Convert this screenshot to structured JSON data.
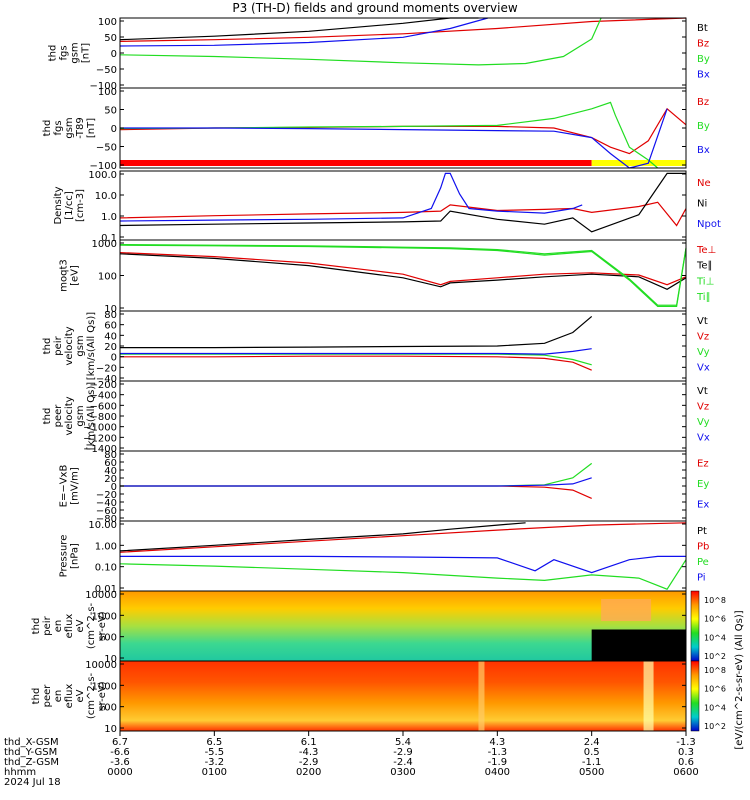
{
  "title": "P3 (TH-D) fields and ground moments overview",
  "colors": {
    "black": "#000000",
    "red": "#e00000",
    "green": "#22dd22",
    "blue": "#1010ee",
    "yellow": "#ffff00",
    "bar_red": "#ff0000"
  },
  "chart_data": [
    {
      "type": "line",
      "ylabel": [
        "thd",
        "fgs",
        "gsm",
        "[nT]"
      ],
      "yticks": [
        "100",
        "50",
        "0",
        "−50",
        "−100"
      ],
      "ylim": [
        -100,
        100
      ],
      "legend": [
        {
          "text": "Bt",
          "color": "#000000"
        },
        {
          "text": "Bz",
          "color": "#e00000"
        },
        {
          "text": "By",
          "color": "#22dd22"
        },
        {
          "text": "Bx",
          "color": "#1010ee"
        }
      ],
      "series": [
        {
          "name": "Bt",
          "x": [
            0,
            1,
            2,
            3,
            3.5,
            3.8
          ],
          "values": [
            38,
            48,
            62,
            85,
            100,
            100
          ]
        },
        {
          "name": "Bz",
          "x": [
            0,
            1,
            2,
            3,
            4,
            5,
            6
          ],
          "values": [
            33,
            38,
            45,
            55,
            70,
            90,
            100
          ]
        },
        {
          "name": "By",
          "x": [
            0,
            1,
            2,
            3,
            3.8,
            4.3,
            4.7,
            5.0,
            5.1
          ],
          "values": [
            -5,
            -10,
            -18,
            -28,
            -34,
            -30,
            -10,
            40,
            100
          ]
        },
        {
          "name": "Bx",
          "x": [
            0,
            1,
            2,
            3,
            3.5,
            3.9
          ],
          "values": [
            20,
            22,
            30,
            45,
            70,
            100
          ]
        }
      ]
    },
    {
      "type": "line",
      "ylabel": [
        "thd",
        "fgs",
        "gsm",
        "-T89",
        "[nT]"
      ],
      "yticks": [
        "100",
        "50",
        "0",
        "−50",
        "−100"
      ],
      "ylim": [
        -125,
        125
      ],
      "legend": [
        {
          "text": "Bz",
          "color": "#e00000"
        },
        {
          "text": "By",
          "color": "#22dd22"
        },
        {
          "text": "Bx",
          "color": "#1010ee"
        }
      ],
      "series": [
        {
          "name": "Bz",
          "x": [
            0,
            1,
            2,
            3,
            4,
            4.6,
            5.0,
            5.2,
            5.4,
            5.6,
            5.8,
            6.0
          ],
          "values": [
            -5,
            0,
            2,
            5,
            5,
            0,
            -30,
            -60,
            -80,
            -40,
            60,
            10
          ]
        },
        {
          "name": "By",
          "x": [
            0,
            1,
            2,
            3,
            4,
            4.6,
            5.0,
            5.2,
            5.25,
            5.4,
            5.6,
            5.7
          ],
          "values": [
            -2,
            0,
            3,
            5,
            8,
            30,
            60,
            80,
            40,
            -60,
            -100,
            -125
          ]
        },
        {
          "name": "Bx",
          "x": [
            0,
            1,
            2,
            3,
            4,
            4.6,
            5.0,
            5.2,
            5.4,
            5.6,
            5.8
          ],
          "values": [
            0,
            0,
            -2,
            -5,
            -8,
            -10,
            -30,
            -80,
            -125,
            -110,
            60
          ]
        }
      ]
    },
    {
      "type": "line",
      "ylabel": [
        "Density",
        "[1/cc]",
        "[cm-3]"
      ],
      "yticks": [
        "100.0",
        "10.0",
        "1.0",
        "0.1"
      ],
      "ylim": [
        0.06,
        130
      ],
      "yscale": "log",
      "legend": [
        {
          "text": "Ne",
          "color": "#e00000"
        },
        {
          "text": "Ni",
          "color": "#000000"
        },
        {
          "text": "Npot",
          "color": "#1010ee"
        }
      ],
      "series": [
        {
          "name": "Ne",
          "x": [
            0,
            1,
            2,
            3,
            3.4,
            3.5,
            4,
            4.5,
            4.8,
            5.0,
            5.5,
            5.7,
            5.9,
            6.0
          ],
          "values": [
            0.7,
            0.9,
            1.1,
            1.3,
            1.5,
            3.0,
            1.6,
            1.8,
            2.0,
            1.3,
            2.5,
            4,
            0.3,
            2
          ]
        },
        {
          "name": "Ni",
          "x": [
            0,
            1,
            2,
            3,
            3.4,
            3.5,
            4,
            4.5,
            4.8,
            5.0,
            5.5,
            5.8,
            6.0
          ],
          "values": [
            0.3,
            0.35,
            0.4,
            0.45,
            0.5,
            1.5,
            0.6,
            0.35,
            0.7,
            0.15,
            1.0,
            100,
            100
          ]
        },
        {
          "name": "Npot",
          "x": [
            0,
            1,
            2,
            3,
            3.3,
            3.4,
            3.45,
            3.5,
            3.6,
            3.7,
            4,
            4.5,
            4.8,
            4.9
          ],
          "values": [
            0.5,
            0.55,
            0.6,
            0.7,
            2,
            20,
            100,
            100,
            10,
            2,
            1.5,
            1.2,
            2,
            3
          ]
        }
      ]
    },
    {
      "type": "line",
      "ylabel": [
        "moqt3",
        "[eV]"
      ],
      "yticks": [
        "1000",
        "100",
        "10"
      ],
      "ylim": [
        6,
        3000
      ],
      "yscale": "log",
      "legend": [
        {
          "text": "Te⊥",
          "color": "#e00000"
        },
        {
          "text": "Te∥",
          "color": "#000000"
        },
        {
          "text": "Ti⊥",
          "color": "#22dd22"
        },
        {
          "text": "Ti∥",
          "color": "#22dd22"
        }
      ],
      "series": [
        {
          "name": "Te⊥",
          "x": [
            0,
            1,
            2,
            3,
            3.4,
            3.5,
            4,
            4.5,
            5.0,
            5.5,
            5.8,
            6.0
          ],
          "values": [
            1000,
            700,
            400,
            150,
            60,
            80,
            110,
            150,
            170,
            140,
            60,
            120
          ]
        },
        {
          "name": "Te∥",
          "x": [
            0,
            1,
            2,
            3,
            3.4,
            3.5,
            4,
            4.5,
            5.0,
            5.5,
            5.8,
            6.0
          ],
          "values": [
            900,
            600,
            320,
            110,
            50,
            70,
            90,
            120,
            150,
            120,
            40,
            110
          ]
        },
        {
          "name": "Ti⊥",
          "x": [
            0,
            1,
            2,
            3,
            3.5,
            4,
            4.5,
            5.0,
            5.4,
            5.7,
            5.9,
            6.0
          ],
          "values": [
            2000,
            1900,
            1800,
            1600,
            1500,
            1300,
            900,
            1200,
            100,
            10,
            10,
            1500
          ]
        },
        {
          "name": "Ti∥",
          "x": [
            0,
            1,
            2,
            3,
            3.5,
            4,
            4.5,
            5.0,
            5.4,
            5.7,
            5.9,
            6.0
          ],
          "values": [
            1900,
            1800,
            1700,
            1500,
            1400,
            1200,
            800,
            1100,
            90,
            9,
            9,
            1400
          ]
        }
      ]
    },
    {
      "type": "line",
      "ylabel": [
        "thd",
        "peir",
        "velocity",
        "gsm",
        "[km/s(All Qs)]"
      ],
      "yticks": [
        "80",
        "60",
        "40",
        "20",
        "0",
        "−20",
        "−40"
      ],
      "ylim": [
        -50,
        80
      ],
      "legend": [
        {
          "text": "Vt",
          "color": "#000000"
        },
        {
          "text": "Vz",
          "color": "#e00000"
        },
        {
          "text": "Vy",
          "color": "#22dd22"
        },
        {
          "text": "Vx",
          "color": "#1010ee"
        }
      ],
      "series": [
        {
          "name": "Vt",
          "x": [
            0,
            1,
            2,
            3,
            4,
            4.5,
            4.8,
            5.0
          ],
          "values": [
            12,
            12,
            13,
            14,
            15,
            20,
            40,
            70
          ]
        },
        {
          "name": "Vz",
          "x": [
            0,
            1,
            2,
            3,
            4,
            4.5,
            4.8,
            5.0
          ],
          "values": [
            -5,
            -5,
            -4,
            -4,
            -5,
            -8,
            -15,
            -30
          ]
        },
        {
          "name": "Vy",
          "x": [
            0,
            1,
            2,
            3,
            4,
            4.5,
            4.8,
            5.0
          ],
          "values": [
            0,
            0,
            0,
            0,
            0,
            -2,
            -10,
            -20
          ]
        },
        {
          "name": "Vx",
          "x": [
            0,
            1,
            2,
            3,
            4,
            4.5,
            4.8,
            5.0
          ],
          "values": [
            1,
            1,
            1,
            1,
            1,
            0,
            5,
            10
          ]
        }
      ]
    },
    {
      "type": "line",
      "ylabel": [
        "thd",
        "peer",
        "velocity",
        "gsm",
        "[km/s(All Qs)]"
      ],
      "yticks": [
        "−200",
        "−400",
        "−600",
        "−800",
        "−1000",
        "−1200",
        "−1400"
      ],
      "ylim": [
        -1500,
        -100
      ],
      "legend": [
        {
          "text": "Vt",
          "color": "#000000"
        },
        {
          "text": "Vz",
          "color": "#e00000"
        },
        {
          "text": "Vy",
          "color": "#22dd22"
        },
        {
          "text": "Vx",
          "color": "#1010ee"
        }
      ],
      "series": []
    },
    {
      "type": "line",
      "ylabel": [
        "E=−VxB",
        "[mV/m]"
      ],
      "yticks": [
        "80",
        "60",
        "40",
        "20",
        "0",
        "−20",
        "−40",
        "−60",
        "−80"
      ],
      "ylim": [
        -85,
        85
      ],
      "legend": [
        {
          "text": "Ez",
          "color": "#e00000"
        },
        {
          "text": "Ey",
          "color": "#22dd22"
        },
        {
          "text": "Ex",
          "color": "#1010ee"
        }
      ],
      "series": [
        {
          "name": "Ez",
          "x": [
            0,
            1,
            2,
            3,
            4,
            4.5,
            4.8,
            5.0
          ],
          "values": [
            0,
            0,
            0,
            0,
            0,
            -3,
            -10,
            -30
          ]
        },
        {
          "name": "Ey",
          "x": [
            0,
            1,
            2,
            3,
            4,
            4.5,
            4.8,
            5.0
          ],
          "values": [
            0,
            0,
            0,
            0,
            0,
            3,
            20,
            55
          ]
        },
        {
          "name": "Ex",
          "x": [
            0,
            1,
            2,
            3,
            4,
            4.5,
            4.8,
            5.0
          ],
          "values": [
            0,
            0,
            0,
            0,
            0,
            2,
            5,
            20
          ]
        }
      ]
    },
    {
      "type": "line",
      "ylabel": [
        "Pressure",
        "[nPa]"
      ],
      "yticks": [
        "10.00",
        "1.00",
        "0.10",
        "0.01"
      ],
      "ylim": [
        0.004,
        25
      ],
      "yscale": "log",
      "legend": [
        {
          "text": "Pt",
          "color": "#000000"
        },
        {
          "text": "Pb",
          "color": "#e00000"
        },
        {
          "text": "Pe",
          "color": "#22dd22"
        },
        {
          "text": "Pi",
          "color": "#1010ee"
        }
      ],
      "legend_side": "[eV/(cm^2-s-sr-eV) (All Qs)]",
      "series": [
        {
          "name": "Pt",
          "x": [
            0,
            1,
            2,
            3,
            3.5,
            4,
            4.3
          ],
          "values": [
            0.6,
            1.2,
            2.5,
            5,
            9,
            15,
            20
          ]
        },
        {
          "name": "Pb",
          "x": [
            0,
            1,
            2,
            3,
            4,
            5,
            6
          ],
          "values": [
            0.5,
            1.0,
            2.0,
            4,
            8,
            15,
            20
          ]
        },
        {
          "name": "Pe",
          "x": [
            0,
            1,
            2,
            3,
            4,
            4.5,
            5.0,
            5.5,
            5.8,
            6.0
          ],
          "values": [
            0.12,
            0.09,
            0.06,
            0.04,
            0.02,
            0.015,
            0.03,
            0.02,
            0.005,
            0.2
          ]
        },
        {
          "name": "Pi",
          "x": [
            0,
            1,
            2,
            3,
            4,
            4.4,
            4.6,
            5.0,
            5.4,
            5.7,
            6.0
          ],
          "values": [
            0.3,
            0.3,
            0.3,
            0.28,
            0.25,
            0.05,
            0.2,
            0.04,
            0.2,
            0.3,
            0.3
          ]
        }
      ]
    },
    {
      "type": "heatmap",
      "ylabel": [
        "thd",
        "peir",
        "en",
        "eflux",
        "eV",
        "(cm^2-s-",
        "sr-eV)"
      ],
      "yticks": [
        "10000",
        "1000",
        "100",
        "10"
      ],
      "ylim": [
        6,
        25000
      ],
      "yscale": "log",
      "colorbar_ticks": [
        "10^8",
        "10^6",
        "10^4",
        "10^2"
      ]
    },
    {
      "type": "heatmap",
      "ylabel": [
        "thd",
        "peer",
        "en",
        "eflux",
        "eV",
        "(cm^2-s-",
        "sr-eV)"
      ],
      "yticks": [
        "10000",
        "1000",
        "100",
        "10"
      ],
      "ylim": [
        6,
        25000
      ],
      "yscale": "log",
      "colorbar_ticks": [
        "10^8",
        "10^6",
        "10^4",
        "10^2"
      ]
    }
  ],
  "colorbar_label": "[eV/(cm^2-s-sr-eV) (All Qs)]",
  "xaxis": {
    "row_labels": [
      "thd_X-GSM",
      "thd_Y-GSM",
      "thd_Z-GSM",
      "hhmm",
      "2024 Jul 18"
    ],
    "x_gsm": [
      "6.7",
      "6.5",
      "6.1",
      "5.4",
      "4.3",
      "2.4",
      "-1.3"
    ],
    "y_gsm": [
      "-6.6",
      "-5.5",
      "-4.3",
      "-2.9",
      "-1.3",
      "0.5",
      "0.3"
    ],
    "z_gsm": [
      "-3.6",
      "-3.2",
      "-2.9",
      "-2.4",
      "-1.9",
      "-1.1",
      "0.6"
    ],
    "hhmm": [
      "0000",
      "0100",
      "0200",
      "0300",
      "0400",
      "0500",
      "0600"
    ]
  }
}
